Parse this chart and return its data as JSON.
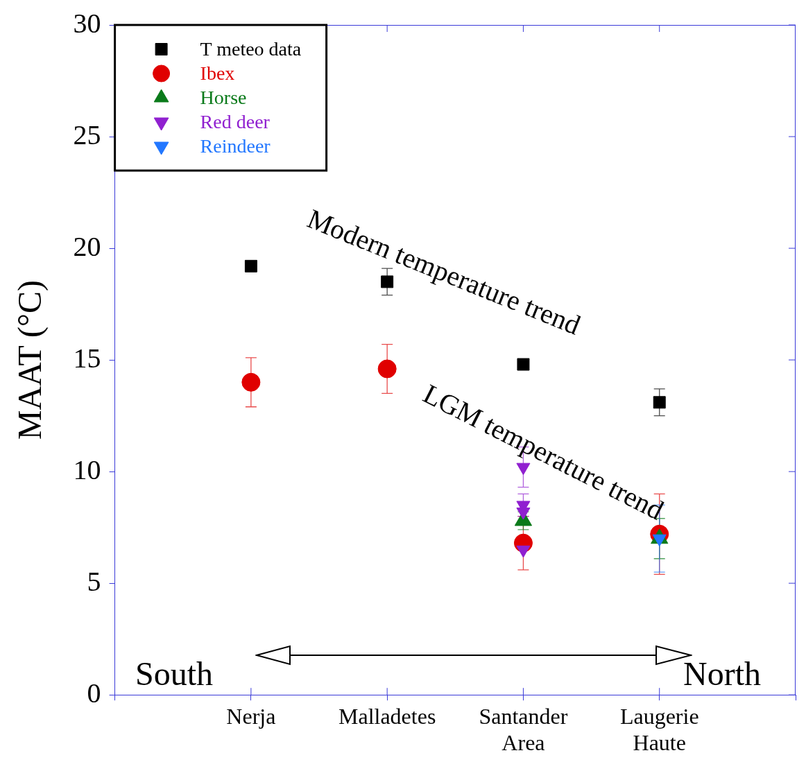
{
  "chart_data": {
    "type": "scatter",
    "ylabel": "MAAT (°C)",
    "categories": [
      "Nerja",
      "Malladetes",
      "Santander Area",
      "Laugerie Haute"
    ],
    "ylim": [
      0,
      30
    ],
    "yticks": [
      0,
      5,
      10,
      15,
      20,
      25,
      30
    ],
    "legend": "top left",
    "annotations": [
      "Modern temperature trend",
      "LGM temperature trend",
      "South",
      "North"
    ],
    "series": [
      {
        "name": "T meteo data",
        "color": "#000000",
        "marker": "square",
        "x": [
          "Nerja",
          "Malladetes",
          "Santander Area",
          "Laugerie Haute"
        ],
        "values": [
          19.2,
          18.5,
          14.8,
          13.1
        ],
        "errors": [
          null,
          0.6,
          null,
          0.6
        ]
      },
      {
        "name": "Ibex",
        "color": "#e00000",
        "marker": "circle",
        "x": [
          "Nerja",
          "Malladetes",
          "Santander Area",
          "Laugerie Haute"
        ],
        "values": [
          14.0,
          14.6,
          6.8,
          7.2
        ],
        "errors": [
          1.1,
          1.1,
          1.2,
          1.8
        ]
      },
      {
        "name": "Horse",
        "color": "#0a7a1a",
        "marker": "triangle",
        "x": [
          "Santander Area",
          "Laugerie Haute"
        ],
        "values": [
          7.8,
          7.0
        ],
        "errors": [
          0.4,
          0.9
        ]
      },
      {
        "name": "Red deer",
        "color": "#9020d0",
        "marker": "triangle-down",
        "x": [
          "Santander Area",
          "Santander Area",
          "Santander Area",
          "Santander Area"
        ],
        "values": [
          10.2,
          8.5,
          8.2,
          6.5
        ],
        "errors": [
          0.9,
          0.5,
          null,
          null
        ]
      },
      {
        "name": "Reindeer",
        "color": "#2277ff",
        "marker": "triangle-down",
        "x": [
          "Laugerie Haute"
        ],
        "values": [
          7.0
        ],
        "errors": [
          1.5
        ]
      }
    ]
  }
}
